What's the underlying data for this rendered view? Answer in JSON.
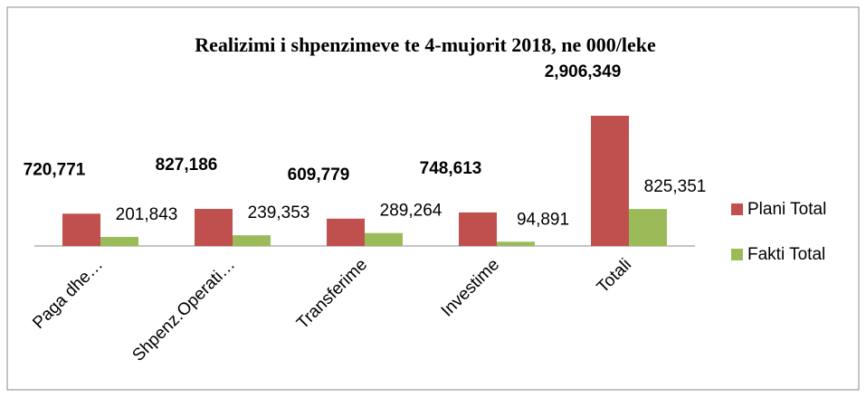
{
  "chart_data": {
    "type": "bar",
    "title": "Realizimi i shpenzimeve te 4-mujorit 2018, ne 000/leke",
    "categories": [
      "Paga dhe…",
      "Shpenz.Operati…",
      "Transferime",
      "Investime",
      "Totali"
    ],
    "series": [
      {
        "name": "Plani Total",
        "color": "#c0504d",
        "values": [
          720771,
          827186,
          609779,
          748613,
          2906349
        ],
        "value_labels": [
          "720,771",
          "827,186",
          "609,779",
          "748,613",
          "2,906,349"
        ]
      },
      {
        "name": "Fakti Total",
        "color": "#9bbb59",
        "values": [
          201843,
          239353,
          289264,
          94891,
          825351
        ],
        "value_labels": [
          "201,843",
          "239,353",
          "289,264",
          "94,891",
          "825,351"
        ]
      }
    ],
    "legend": "right"
  }
}
